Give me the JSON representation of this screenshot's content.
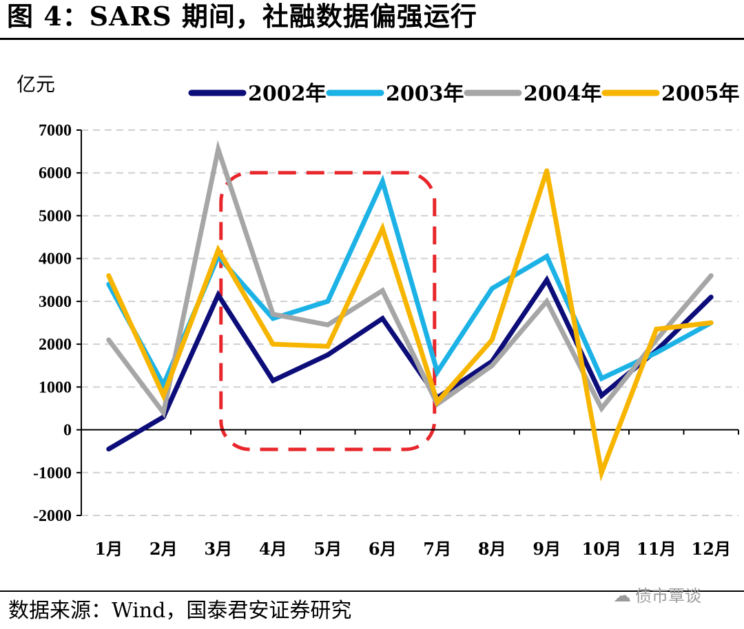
{
  "header": {
    "title": "图 4：SARS 期间，社融数据偏强运行"
  },
  "footer": {
    "source": "数据来源：Wind，国泰君安证券研究",
    "watermark_icon": "wechat-icon",
    "watermark_text": "债市覃谈"
  },
  "chart_data": {
    "type": "line",
    "unit_label": "亿元",
    "categories": [
      "1月",
      "2月",
      "3月",
      "4月",
      "5月",
      "6月",
      "7月",
      "8月",
      "9月",
      "10月",
      "11月",
      "12月"
    ],
    "ylim": [
      -2000,
      7000
    ],
    "yticks": [
      "7000",
      "6000",
      "5000",
      "4000",
      "3000",
      "2000",
      "1000",
      "0",
      "-1000",
      "-2000"
    ],
    "grid": true,
    "legend_position": "top",
    "series": [
      {
        "name": "2002年",
        "color": "#0d0d7a",
        "values": [
          -450,
          300,
          3150,
          1150,
          1750,
          2600,
          750,
          1600,
          3500,
          800,
          1850,
          3100
        ]
      },
      {
        "name": "2003年",
        "color": "#1cb2e6",
        "values": [
          3400,
          1050,
          4050,
          2600,
          3000,
          5800,
          1350,
          3300,
          4050,
          1200,
          1800,
          2500
        ]
      },
      {
        "name": "2004年",
        "color": "#a6a6a6",
        "values": [
          2100,
          400,
          6550,
          2700,
          2450,
          3250,
          600,
          1500,
          3000,
          500,
          2100,
          3600
        ]
      },
      {
        "name": "2005年",
        "color": "#f7b500",
        "values": [
          3600,
          800,
          4200,
          2000,
          1950,
          4700,
          650,
          2100,
          6050,
          -1000,
          2350,
          2500
        ]
      }
    ],
    "annotation": {
      "type": "dashed-box",
      "color": "#e8262b",
      "from_category": "4月",
      "to_category": "6月"
    }
  }
}
